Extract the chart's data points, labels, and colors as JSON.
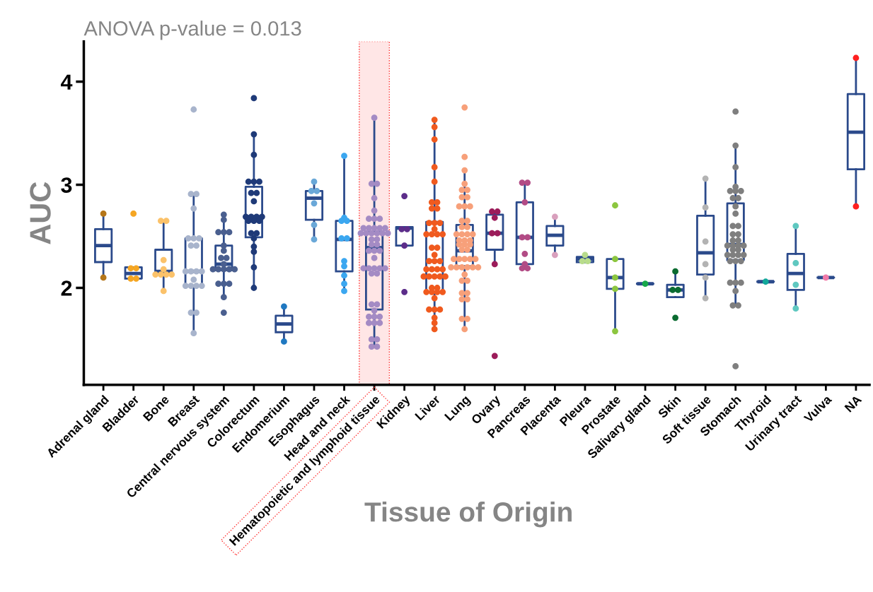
{
  "chart_data": {
    "type": "box",
    "title": "ANOVA p-value = 0.013",
    "xlabel": "Tissue of Origin",
    "ylabel": "AUC",
    "categories": [
      "Adrenal gland",
      "Bladder",
      "Bone",
      "Breast",
      "Central nervous system",
      "Colorectum",
      "Endomerium",
      "Esophagus",
      "Head and neck",
      "Hematopoietic and lymphoid tissue",
      "Kidney",
      "Liver",
      "Lung",
      "Ovary",
      "Pancreas",
      "Placenta",
      "Pleura",
      "Prostate",
      "Salivary gland",
      "Skin",
      "Soft tissue",
      "Stomach",
      "Thyroid",
      "Urinary tract",
      "Vulva",
      "NA"
    ],
    "color": "#2b4a8b",
    "ylim": [
      1.06,
      4.39
    ],
    "yticks": [
      2,
      3,
      4
    ],
    "marker": "circle",
    "boxes": [
      {
        "low": 2.1,
        "q1": 2.25,
        "median": 2.41,
        "q3": 2.57,
        "high": 2.72
      },
      {
        "low": 2.09,
        "q1": 2.09,
        "median": 2.14,
        "q3": 2.2,
        "high": 2.2
      },
      {
        "low": 1.97,
        "q1": 2.15,
        "median": 2.16,
        "q3": 2.37,
        "high": 2.65
      },
      {
        "low": 1.56,
        "q1": 2.02,
        "median": 2.16,
        "q3": 2.48,
        "high": 2.91
      },
      {
        "low": 1.91,
        "q1": 2.17,
        "median": 2.23,
        "q3": 2.41,
        "high": 2.71
      },
      {
        "low": 2.0,
        "q1": 2.49,
        "median": 2.69,
        "q3": 2.98,
        "high": 3.49
      },
      {
        "low": 1.48,
        "q1": 1.57,
        "median": 1.65,
        "q3": 1.73,
        "high": 1.82
      },
      {
        "low": 2.47,
        "q1": 2.66,
        "median": 2.87,
        "q3": 2.94,
        "high": 3.03
      },
      {
        "low": 1.97,
        "q1": 2.16,
        "median": 2.47,
        "q3": 2.65,
        "high": 3.28
      },
      {
        "low": 1.43,
        "q1": 1.79,
        "median": 2.39,
        "q3": 2.54,
        "high": 3.65
      },
      {
        "low": 2.41,
        "q1": 2.41,
        "median": 2.58,
        "q3": 2.59,
        "high": 2.59
      },
      {
        "low": 1.6,
        "q1": 1.96,
        "median": 2.26,
        "q3": 2.64,
        "high": 3.63
      },
      {
        "low": 1.6,
        "q1": 2.21,
        "median": 2.36,
        "q3": 2.61,
        "high": 3.14
      },
      {
        "low": 2.23,
        "q1": 2.37,
        "median": 2.53,
        "q3": 2.71,
        "high": 2.74
      },
      {
        "low": 2.19,
        "q1": 2.23,
        "median": 2.49,
        "q3": 2.83,
        "high": 3.02
      },
      {
        "low": 2.32,
        "q1": 2.41,
        "median": 2.51,
        "q3": 2.6,
        "high": 2.69
      },
      {
        "low": 2.25,
        "q1": 2.25,
        "median": 2.28,
        "q3": 2.3,
        "high": 2.3
      },
      {
        "low": 1.58,
        "q1": 1.99,
        "median": 2.1,
        "q3": 2.28,
        "high": 2.28
      },
      {
        "low": 2.04,
        "q1": 2.04,
        "median": 2.04,
        "q3": 2.04,
        "high": 2.04
      },
      {
        "low": 1.91,
        "q1": 1.91,
        "median": 1.98,
        "q3": 2.03,
        "high": 2.16
      },
      {
        "low": 1.9,
        "q1": 2.13,
        "median": 2.34,
        "q3": 2.7,
        "high": 3.06
      },
      {
        "low": 1.83,
        "q1": 2.27,
        "median": 2.42,
        "q3": 2.82,
        "high": 3.38
      },
      {
        "low": 2.06,
        "q1": 2.06,
        "median": 2.06,
        "q3": 2.06,
        "high": 2.06
      },
      {
        "low": 1.8,
        "q1": 1.98,
        "median": 2.14,
        "q3": 2.33,
        "high": 2.6
      },
      {
        "low": 2.1,
        "q1": 2.1,
        "median": 2.1,
        "q3": 2.1,
        "high": 2.1
      },
      {
        "low": 2.79,
        "q1": 3.15,
        "median": 3.51,
        "q3": 3.88,
        "high": 4.23
      }
    ],
    "series": [
      {
        "type": "scatter",
        "color": "#b5761a",
        "x": [
          "Adrenal gland",
          "Adrenal gland"
        ],
        "values": [
          2.72,
          2.1
        ]
      },
      {
        "type": "scatter",
        "color": "#f5a623",
        "x": [
          "Bladder",
          "Bladder",
          "Bladder",
          "Bladder",
          "Bladder"
        ],
        "values": [
          2.72,
          2.19,
          2.19,
          2.09,
          2.09
        ]
      },
      {
        "type": "scatter",
        "color": "#fbc26a",
        "x": [
          "Bone",
          "Bone",
          "Bone",
          "Bone",
          "Bone",
          "Bone",
          "Bone",
          "Bone",
          "Bone"
        ],
        "values": [
          2.65,
          2.65,
          2.27,
          2.18,
          2.13,
          2.13,
          2.13,
          2.13,
          1.97
        ]
      },
      {
        "type": "scatter",
        "color": "#a8b4cc",
        "x": [
          "Breast",
          "Breast",
          "Breast",
          "Breast",
          "Breast",
          "Breast",
          "Breast",
          "Breast",
          "Breast",
          "Breast",
          "Breast",
          "Breast",
          "Breast",
          "Breast",
          "Breast",
          "Breast",
          "Breast",
          "Breast",
          "Breast",
          "Breast",
          "Breast"
        ],
        "values": [
          3.73,
          2.91,
          2.91,
          2.77,
          2.48,
          2.48,
          2.48,
          2.41,
          2.41,
          2.16,
          2.16,
          2.16,
          2.16,
          2.08,
          2.02,
          2.02,
          2.02,
          2.02,
          1.76,
          1.76,
          1.56
        ]
      },
      {
        "type": "scatter",
        "color": "#4a5f8f",
        "x": [
          "Central nervous system",
          "Central nervous system",
          "Central nervous system",
          "Central nervous system",
          "Central nervous system",
          "Central nervous system",
          "Central nervous system",
          "Central nervous system",
          "Central nervous system",
          "Central nervous system",
          "Central nervous system",
          "Central nervous system",
          "Central nervous system",
          "Central nervous system",
          "Central nervous system",
          "Central nervous system",
          "Central nervous system",
          "Central nervous system",
          "Central nervous system",
          "Central nervous system"
        ],
        "values": [
          2.71,
          2.66,
          2.54,
          2.54,
          2.54,
          2.41,
          2.36,
          2.29,
          2.29,
          2.23,
          2.18,
          2.18,
          2.18,
          2.18,
          2.18,
          2.04,
          2.04,
          2.04,
          1.91,
          1.76
        ]
      },
      {
        "type": "scatter",
        "color": "#1f3a78",
        "x": [
          "Colorectum",
          "Colorectum",
          "Colorectum",
          "Colorectum",
          "Colorectum",
          "Colorectum",
          "Colorectum",
          "Colorectum",
          "Colorectum",
          "Colorectum",
          "Colorectum",
          "Colorectum",
          "Colorectum",
          "Colorectum",
          "Colorectum",
          "Colorectum",
          "Colorectum",
          "Colorectum",
          "Colorectum",
          "Colorectum",
          "Colorectum",
          "Colorectum",
          "Colorectum"
        ],
        "values": [
          3.84,
          3.49,
          3.29,
          3.03,
          3.03,
          3.03,
          2.92,
          2.92,
          2.84,
          2.69,
          2.69,
          2.69,
          2.69,
          2.65,
          2.65,
          2.65,
          2.53,
          2.53,
          2.48,
          2.4,
          2.35,
          2.2,
          2.0
        ]
      },
      {
        "type": "scatter",
        "color": "#1f78c1",
        "x": [
          "Endomerium",
          "Endomerium"
        ],
        "values": [
          1.82,
          1.48
        ]
      },
      {
        "type": "scatter",
        "color": "#6aa8d8",
        "x": [
          "Esophagus",
          "Esophagus",
          "Esophagus",
          "Esophagus",
          "Esophagus",
          "Esophagus"
        ],
        "values": [
          3.03,
          2.94,
          2.94,
          2.82,
          2.61,
          2.47
        ]
      },
      {
        "type": "scatter",
        "color": "#3ba7f0",
        "x": [
          "Head and neck",
          "Head and neck",
          "Head and neck",
          "Head and neck",
          "Head and neck",
          "Head and neck",
          "Head and neck",
          "Head and neck",
          "Head and neck",
          "Head and neck",
          "Head and neck"
        ],
        "values": [
          3.28,
          2.68,
          2.65,
          2.65,
          2.48,
          2.48,
          2.26,
          2.21,
          2.12,
          2.04,
          1.97
        ]
      },
      {
        "type": "scatter",
        "color": "#a48bc4",
        "x": [
          "Hematopoietic and lymphoid tissue",
          "Hematopoietic and lymphoid tissue",
          "Hematopoietic and lymphoid tissue",
          "Hematopoietic and lymphoid tissue",
          "Hematopoietic and lymphoid tissue",
          "Hematopoietic and lymphoid tissue",
          "Hematopoietic and lymphoid tissue",
          "Hematopoietic and lymphoid tissue",
          "Hematopoietic and lymphoid tissue",
          "Hematopoietic and lymphoid tissue",
          "Hematopoietic and lymphoid tissue",
          "Hematopoietic and lymphoid tissue",
          "Hematopoietic and lymphoid tissue",
          "Hematopoietic and lymphoid tissue",
          "Hematopoietic and lymphoid tissue",
          "Hematopoietic and lymphoid tissue",
          "Hematopoietic and lymphoid tissue",
          "Hematopoietic and lymphoid tissue",
          "Hematopoietic and lymphoid tissue",
          "Hematopoietic and lymphoid tissue",
          "Hematopoietic and lymphoid tissue",
          "Hematopoietic and lymphoid tissue",
          "Hematopoietic and lymphoid tissue",
          "Hematopoietic and lymphoid tissue",
          "Hematopoietic and lymphoid tissue",
          "Hematopoietic and lymphoid tissue",
          "Hematopoietic and lymphoid tissue",
          "Hematopoietic and lymphoid tissue",
          "Hematopoietic and lymphoid tissue",
          "Hematopoietic and lymphoid tissue",
          "Hematopoietic and lymphoid tissue",
          "Hematopoietic and lymphoid tissue",
          "Hematopoietic and lymphoid tissue",
          "Hematopoietic and lymphoid tissue",
          "Hematopoietic and lymphoid tissue",
          "Hematopoietic and lymphoid tissue",
          "Hematopoietic and lymphoid tissue",
          "Hematopoietic and lymphoid tissue",
          "Hematopoietic and lymphoid tissue",
          "Hematopoietic and lymphoid tissue",
          "Hematopoietic and lymphoid tissue",
          "Hematopoietic and lymphoid tissue",
          "Hematopoietic and lymphoid tissue",
          "Hematopoietic and lymphoid tissue",
          "Hematopoietic and lymphoid tissue",
          "Hematopoietic and lymphoid tissue",
          "Hematopoietic and lymphoid tissue"
        ],
        "values": [
          3.65,
          3.01,
          3.01,
          2.87,
          2.75,
          2.67,
          2.67,
          2.67,
          2.58,
          2.58,
          2.58,
          2.58,
          2.58,
          2.53,
          2.53,
          2.53,
          2.53,
          2.53,
          2.53,
          2.47,
          2.47,
          2.42,
          2.42,
          2.36,
          2.36,
          2.36,
          2.29,
          2.19,
          2.19,
          2.19,
          2.19,
          2.19,
          2.14,
          2.14,
          1.84,
          1.84,
          1.78,
          1.72,
          1.72,
          1.72,
          1.66,
          1.66,
          1.66,
          1.5,
          1.5,
          1.43,
          1.43
        ]
      },
      {
        "type": "scatter",
        "color": "#5c2d8a",
        "x": [
          "Kidney",
          "Kidney",
          "Kidney",
          "Kidney",
          "Kidney"
        ],
        "values": [
          2.89,
          2.57,
          2.57,
          2.41,
          1.96
        ]
      },
      {
        "type": "scatter",
        "color": "#f05a1e",
        "x": [
          "Liver",
          "Liver",
          "Liver",
          "Liver",
          "Liver",
          "Liver",
          "Liver",
          "Liver",
          "Liver",
          "Liver",
          "Liver",
          "Liver",
          "Liver",
          "Liver",
          "Liver",
          "Liver",
          "Liver",
          "Liver",
          "Liver",
          "Liver",
          "Liver",
          "Liver",
          "Liver",
          "Liver",
          "Liver",
          "Liver",
          "Liver",
          "Liver",
          "Liver",
          "Liver",
          "Liver",
          "Liver",
          "Liver",
          "Liver",
          "Liver",
          "Liver",
          "Liver",
          "Liver",
          "Liver",
          "Liver",
          "Liver",
          "Liver",
          "Liver",
          "Liver",
          "Liver"
        ],
        "values": [
          3.63,
          3.56,
          3.44,
          3.17,
          3.03,
          2.83,
          2.83,
          2.77,
          2.77,
          2.63,
          2.63,
          2.63,
          2.57,
          2.52,
          2.52,
          2.52,
          2.52,
          2.39,
          2.39,
          2.32,
          2.26,
          2.26,
          2.26,
          2.18,
          2.18,
          2.18,
          2.18,
          2.11,
          2.11,
          2.11,
          2.11,
          2.11,
          2.0,
          2.0,
          1.96,
          1.96,
          1.96,
          1.96,
          1.9,
          1.79,
          1.79,
          1.79,
          1.71,
          1.66,
          1.6
        ]
      },
      {
        "type": "scatter",
        "color": "#f7a07a",
        "x": [
          "Lung",
          "Lung",
          "Lung",
          "Lung",
          "Lung",
          "Lung",
          "Lung",
          "Lung",
          "Lung",
          "Lung",
          "Lung",
          "Lung",
          "Lung",
          "Lung",
          "Lung",
          "Lung",
          "Lung",
          "Lung",
          "Lung",
          "Lung",
          "Lung",
          "Lung",
          "Lung",
          "Lung",
          "Lung",
          "Lung",
          "Lung",
          "Lung",
          "Lung",
          "Lung",
          "Lung",
          "Lung",
          "Lung",
          "Lung",
          "Lung",
          "Lung",
          "Lung",
          "Lung",
          "Lung",
          "Lung",
          "Lung",
          "Lung",
          "Lung",
          "Lung",
          "Lung",
          "Lung",
          "Lung",
          "Lung"
        ],
        "values": [
          3.75,
          3.27,
          3.14,
          3.01,
          2.95,
          2.95,
          2.88,
          2.88,
          2.79,
          2.79,
          2.79,
          2.65,
          2.65,
          2.59,
          2.59,
          2.52,
          2.52,
          2.52,
          2.52,
          2.46,
          2.46,
          2.46,
          2.42,
          2.42,
          2.42,
          2.37,
          2.37,
          2.28,
          2.28,
          2.28,
          2.28,
          2.28,
          2.2,
          2.2,
          2.2,
          2.2,
          2.2,
          2.2,
          2.13,
          2.07,
          2.07,
          1.95,
          1.95,
          1.89,
          1.89,
          1.7,
          1.7,
          1.6
        ]
      },
      {
        "type": "scatter",
        "color": "#9c1c5a",
        "x": [
          "Ovary",
          "Ovary",
          "Ovary",
          "Ovary",
          "Ovary",
          "Ovary",
          "Ovary"
        ],
        "values": [
          2.74,
          2.74,
          2.68,
          2.53,
          2.53,
          2.23,
          1.34
        ]
      },
      {
        "type": "scatter",
        "color": "#b24b85",
        "x": [
          "Pancreas",
          "Pancreas",
          "Pancreas",
          "Pancreas",
          "Pancreas",
          "Pancreas",
          "Pancreas",
          "Pancreas",
          "Pancreas"
        ],
        "values": [
          3.02,
          3.02,
          2.83,
          2.49,
          2.49,
          2.33,
          2.23,
          2.19,
          2.19
        ]
      },
      {
        "type": "scatter",
        "color": "#d9a0bd",
        "x": [
          "Placenta",
          "Placenta"
        ],
        "values": [
          2.69,
          2.32
        ]
      },
      {
        "type": "scatter",
        "color": "#b8dc8c",
        "x": [
          "Pleura",
          "Pleura",
          "Pleura"
        ],
        "values": [
          2.32,
          2.26,
          2.26
        ]
      },
      {
        "type": "scatter",
        "color": "#8cc63f",
        "x": [
          "Prostate",
          "Prostate",
          "Prostate",
          "Prostate",
          "Prostate"
        ],
        "values": [
          2.8,
          2.28,
          2.1,
          1.99,
          1.58
        ]
      },
      {
        "type": "scatter",
        "color": "#17a84a",
        "x": [
          "Salivary gland"
        ],
        "values": [
          2.04
        ]
      },
      {
        "type": "scatter",
        "color": "#0a6b30",
        "x": [
          "Skin",
          "Skin",
          "Skin",
          "Skin"
        ],
        "values": [
          2.16,
          1.98,
          1.98,
          1.71
        ]
      },
      {
        "type": "scatter",
        "color": "#b3b3b3",
        "x": [
          "Soft tissue",
          "Soft tissue",
          "Soft tissue",
          "Soft tissue",
          "Soft tissue",
          "Soft tissue"
        ],
        "values": [
          3.06,
          2.78,
          2.45,
          2.23,
          2.1,
          1.9
        ]
      },
      {
        "type": "scatter",
        "color": "#7f7f7f",
        "x": [
          "Stomach",
          "Stomach",
          "Stomach",
          "Stomach",
          "Stomach",
          "Stomach",
          "Stomach",
          "Stomach",
          "Stomach",
          "Stomach",
          "Stomach",
          "Stomach",
          "Stomach",
          "Stomach",
          "Stomach",
          "Stomach",
          "Stomach",
          "Stomach",
          "Stomach",
          "Stomach",
          "Stomach",
          "Stomach",
          "Stomach",
          "Stomach",
          "Stomach",
          "Stomach",
          "Stomach",
          "Stomach",
          "Stomach",
          "Stomach",
          "Stomach",
          "Stomach",
          "Stomach",
          "Stomach",
          "Stomach",
          "Stomach",
          "Stomach"
        ],
        "values": [
          3.71,
          3.38,
          3.17,
          2.98,
          2.94,
          2.94,
          2.94,
          2.87,
          2.87,
          2.79,
          2.72,
          2.6,
          2.6,
          2.52,
          2.52,
          2.46,
          2.46,
          2.41,
          2.41,
          2.41,
          2.41,
          2.37,
          2.37,
          2.32,
          2.32,
          2.32,
          2.32,
          2.26,
          2.26,
          2.26,
          2.05,
          2.05,
          2.05,
          1.97,
          1.83,
          1.83,
          1.24
        ]
      },
      {
        "type": "scatter",
        "color": "#12a89a",
        "x": [
          "Thyroid"
        ],
        "values": [
          2.06
        ]
      },
      {
        "type": "scatter",
        "color": "#5fc8c0",
        "x": [
          "Urinary tract",
          "Urinary tract",
          "Urinary tract",
          "Urinary tract"
        ],
        "values": [
          2.6,
          2.24,
          2.03,
          1.8
        ]
      },
      {
        "type": "scatter",
        "color": "#f07aa8",
        "x": [
          "Vulva"
        ],
        "values": [
          2.1
        ]
      },
      {
        "type": "scatter",
        "color": "#ff2020",
        "x": [
          "NA",
          "NA"
        ],
        "values": [
          4.23,
          2.79
        ]
      }
    ],
    "bands": [
      {
        "axis": "x",
        "from": "Hematopoietic and lymphoid tissue",
        "to": "Hematopoietic and lymphoid tissue",
        "color": "#ff3030"
      }
    ]
  }
}
